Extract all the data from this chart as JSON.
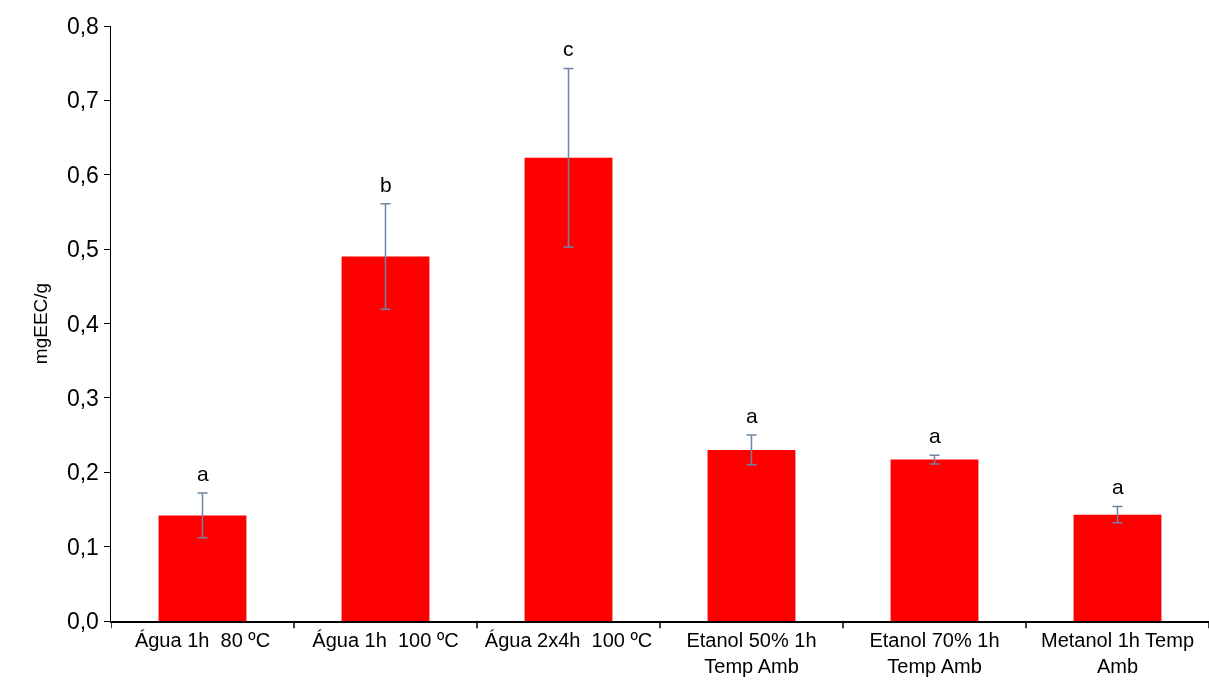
{
  "chart_data": {
    "type": "bar",
    "ylabel": "mgEEC/g",
    "categories": [
      "Água 1h  80 ºC",
      "Água 1h  100 ºC",
      "Água 2x4h  100 ºC",
      "Etanol 50% 1h Temp Amb",
      "Etanol 70% 1h Temp Amb",
      "Metanol 1h Temp Amb"
    ],
    "values": [
      0.142,
      0.49,
      0.623,
      0.23,
      0.217,
      0.143
    ],
    "errors": [
      0.03,
      0.071,
      0.12,
      0.02,
      0.006,
      0.011
    ],
    "color": "#ff0000",
    "ylim": [
      0,
      0.8
    ],
    "yticks": [
      {
        "value": 0,
        "label": "0,0"
      },
      {
        "value": 0.1,
        "label": "0,1"
      },
      {
        "value": 0.2,
        "label": "0,2"
      },
      {
        "value": 0.3,
        "label": "0,3"
      },
      {
        "value": 0.4,
        "label": "0,4"
      },
      {
        "value": 0.5,
        "label": "0,5"
      },
      {
        "value": 0.6,
        "label": "0,6"
      },
      {
        "value": 0.7,
        "label": "0,7"
      },
      {
        "value": 0.8,
        "label": "0,8"
      }
    ],
    "annotations": [
      {
        "text": "a",
        "x": "Água 1h  80 ºC",
        "y": 0.172
      },
      {
        "text": "b",
        "x": "Água 1h  100 ºC",
        "y": 0.561
      },
      {
        "text": "c",
        "x": "Água 2x4h  100 ºC",
        "y": 0.743
      },
      {
        "text": "a",
        "x": "Etanol 50% 1h Temp Amb",
        "y": 0.25
      },
      {
        "text": "a",
        "x": "Etanol 70% 1h Temp Amb",
        "y": 0.223
      },
      {
        "text": "a",
        "x": "Metanol 1h Temp Amb",
        "y": 0.154
      }
    ]
  }
}
